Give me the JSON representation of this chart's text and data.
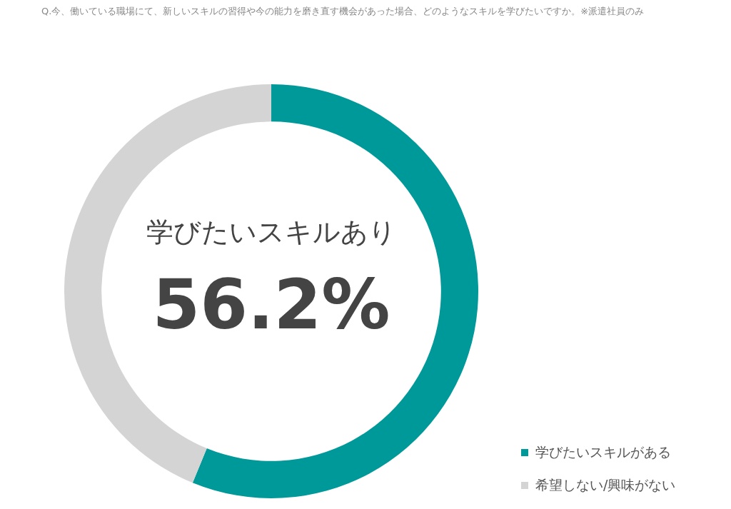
{
  "chart_data": {
    "type": "donut",
    "title": "Q.今、働いている職場にて、新しいスキルの習得や今の能力を磨き直す機会があった場合、どのようなスキルを学びたいですか。※派遣社員のみ",
    "categories": [
      "学びたいスキルがある",
      "希望しない/興味がない"
    ],
    "values": [
      56.2,
      43.8
    ],
    "colors": [
      "#009999",
      "#d4d4d4"
    ],
    "annotations": [
      "学びたいスキルあり",
      "56.2%"
    ],
    "legend": "bottom right"
  }
}
